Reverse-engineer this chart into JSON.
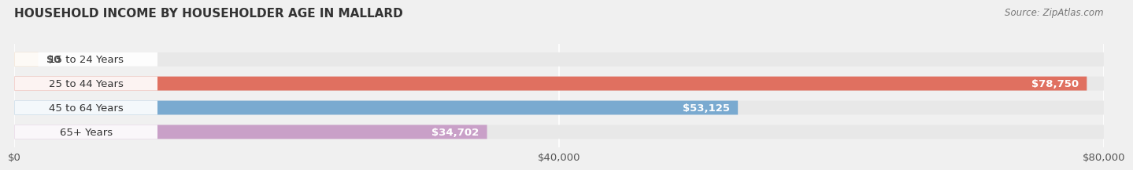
{
  "title": "HOUSEHOLD INCOME BY HOUSEHOLDER AGE IN MALLARD",
  "source": "Source: ZipAtlas.com",
  "categories": [
    "15 to 24 Years",
    "25 to 44 Years",
    "45 to 64 Years",
    "65+ Years"
  ],
  "values": [
    0,
    78750,
    53125,
    34702
  ],
  "bar_colors": [
    "#e8c49a",
    "#e07060",
    "#7aaad0",
    "#c9a0c8"
  ],
  "xlim": [
    0,
    80000
  ],
  "xticks": [
    0,
    40000,
    80000
  ],
  "xtick_labels": [
    "$0",
    "$40,000",
    "$80,000"
  ],
  "bar_height": 0.58,
  "label_fontsize": 9.5,
  "title_fontsize": 11,
  "value_labels": [
    "$0",
    "$78,750",
    "$53,125",
    "$34,702"
  ],
  "background_color": "#f0f0f0",
  "bar_bg_color": "#e8e8e8"
}
